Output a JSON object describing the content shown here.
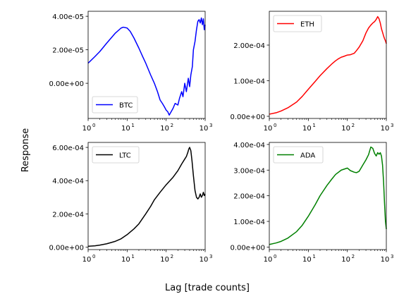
{
  "figure": {
    "xlabel": "Lag [trade counts]",
    "ylabel": "Response"
  },
  "chart_data": [
    {
      "type": "line",
      "series": [
        {
          "name": "BTC",
          "color": "#0000ff",
          "x": [
            1,
            1.5,
            2,
            3,
            5,
            7,
            8,
            10,
            12,
            15,
            20,
            25,
            30,
            40,
            50,
            60,
            70,
            80,
            90,
            100,
            110,
            120,
            150,
            170,
            200,
            220,
            250,
            270,
            300,
            330,
            370,
            400,
            430,
            470,
            500,
            550,
            600,
            650,
            700,
            750,
            800,
            850,
            900,
            950,
            1000
          ],
          "y": [
            1.2e-05,
            1.6e-05,
            1.9e-05,
            2.4e-05,
            3e-05,
            3.3e-05,
            3.35e-05,
            3.3e-05,
            3.1e-05,
            2.7e-05,
            2.1e-05,
            1.6e-05,
            1.2e-05,
            5e-06,
            0.0,
            -5e-06,
            -1e-05,
            -1.2e-05,
            -1.4e-05,
            -1.6e-05,
            -1.7e-05,
            -1.9e-05,
            -1.5e-05,
            -1.2e-05,
            -1.3e-05,
            -9e-06,
            -5e-06,
            -8e-06,
            0.0,
            -5e-06,
            3e-06,
            -2e-06,
            5e-06,
            1e-05,
            2e-05,
            2.5e-05,
            3.2e-05,
            3.7e-05,
            3.8e-05,
            3.6e-05,
            3.9e-05,
            3.5e-05,
            3.85e-05,
            3.2e-05,
            3.5e-05
          ]
        }
      ],
      "yticks": [
        0.0,
        2e-05,
        4e-05
      ],
      "ytick_labels": [
        "0.00e+00",
        "2.00e-05",
        "4.00e-05"
      ],
      "ylim": [
        -2.1e-05,
        4.3e-05
      ],
      "xlim": [
        1,
        1000
      ],
      "xscale": "log",
      "xtick_labels": [
        "10",
        "10",
        "10",
        "10"
      ],
      "xtick_exps": [
        "0",
        "1",
        "2",
        "3"
      ],
      "legend": "lower-left"
    },
    {
      "type": "line",
      "series": [
        {
          "name": "ETH",
          "color": "#ff0000",
          "x": [
            1,
            1.5,
            2,
            3,
            5,
            7,
            10,
            15,
            20,
            30,
            40,
            50,
            60,
            70,
            80,
            100,
            120,
            150,
            170,
            200,
            250,
            300,
            350,
            400,
            450,
            500,
            550,
            600,
            650,
            700,
            750,
            800,
            850,
            900,
            950,
            1000
          ],
          "y": [
            6e-06,
            1e-05,
            1.5e-05,
            2.4e-05,
            4e-05,
            5.6e-05,
            7.6e-05,
            9.8e-05,
            0.000114,
            0.000134,
            0.000147,
            0.000156,
            0.000162,
            0.000166,
            0.000168,
            0.000172,
            0.000173,
            0.000177,
            0.000184,
            0.000194,
            0.000212,
            0.000234,
            0.000248,
            0.000256,
            0.000262,
            0.000266,
            0.000272,
            0.00028,
            0.000274,
            0.000262,
            0.000246,
            0.000236,
            0.000226,
            0.000218,
            0.000212,
            0.000204
          ]
        }
      ],
      "yticks": [
        0.0,
        0.0001,
        0.0002
      ],
      "ytick_labels": [
        "0.00e+00",
        "1.00e-04",
        "2.00e-04"
      ],
      "ylim": [
        -6e-06,
        0.000295
      ],
      "xlim": [
        1,
        1000
      ],
      "xscale": "log",
      "xtick_labels": [
        "10",
        "10",
        "10",
        "10"
      ],
      "xtick_exps": [
        "0",
        "1",
        "2",
        "3"
      ],
      "legend": "top-left"
    },
    {
      "type": "line",
      "series": [
        {
          "name": "LTC",
          "color": "#000000",
          "x": [
            1,
            1.5,
            2,
            3,
            5,
            7,
            10,
            15,
            20,
            30,
            40,
            50,
            70,
            100,
            150,
            200,
            250,
            300,
            330,
            360,
            380,
            400,
            430,
            460,
            500,
            550,
            600,
            650,
            700,
            750,
            800,
            850,
            900,
            950,
            1000
          ],
          "y": [
            5e-06,
            8e-06,
            1.2e-05,
            2e-05,
            3.5e-05,
            5e-05,
            7.5e-05,
            0.00011,
            0.00014,
            0.0002,
            0.000245,
            0.000285,
            0.00033,
            0.000375,
            0.00042,
            0.00046,
            0.0005,
            0.00053,
            0.000545,
            0.00057,
            0.00059,
            0.0006,
            0.00058,
            0.00052,
            0.00043,
            0.00034,
            0.0003,
            0.00029,
            0.0003,
            0.00032,
            0.0003,
            0.00031,
            0.00033,
            0.00031,
            0.00032
          ]
        }
      ],
      "yticks": [
        0.0,
        0.0002,
        0.0004,
        0.0006
      ],
      "ytick_labels": [
        "0.00e+00",
        "2.00e-04",
        "4.00e-04",
        "6.00e-04"
      ],
      "ylim": [
        -1.5e-05,
        0.00063
      ],
      "xlim": [
        1,
        1000
      ],
      "xscale": "log",
      "xtick_labels": [
        "10",
        "10",
        "10",
        "10"
      ],
      "xtick_exps": [
        "0",
        "1",
        "2",
        "3"
      ],
      "legend": "top-left"
    },
    {
      "type": "line",
      "series": [
        {
          "name": "ADA",
          "color": "#008000",
          "x": [
            1,
            1.5,
            2,
            3,
            5,
            7,
            10,
            15,
            20,
            30,
            40,
            50,
            70,
            100,
            120,
            150,
            170,
            200,
            250,
            300,
            350,
            400,
            450,
            500,
            550,
            600,
            650,
            700,
            750,
            800,
            850,
            900,
            950,
            1000
          ],
          "y": [
            1e-05,
            1.6e-05,
            2.2e-05,
            3.5e-05,
            6e-05,
            8.5e-05,
            0.00012,
            0.000165,
            0.0002,
            0.00024,
            0.000265,
            0.000283,
            0.0003,
            0.000308,
            0.000298,
            0.000292,
            0.00029,
            0.000295,
            0.00032,
            0.00034,
            0.00036,
            0.00039,
            0.000385,
            0.000365,
            0.000355,
            0.000368,
            0.000362,
            0.000368,
            0.000355,
            0.00032,
            0.000255,
            0.00017,
            0.0001,
            7e-05
          ]
        }
      ],
      "yticks": [
        0.0,
        0.0001,
        0.0002,
        0.0003,
        0.0004
      ],
      "ytick_labels": [
        "0.00e+00",
        "1.00e-04",
        "2.00e-04",
        "3.00e-04",
        "4.00e-04"
      ],
      "ylim": [
        -1e-05,
        0.000408
      ],
      "xlim": [
        1,
        1000
      ],
      "xscale": "log",
      "xtick_labels": [
        "10",
        "10",
        "10",
        "10"
      ],
      "xtick_exps": [
        "0",
        "1",
        "2",
        "3"
      ],
      "legend": "top-left"
    }
  ]
}
